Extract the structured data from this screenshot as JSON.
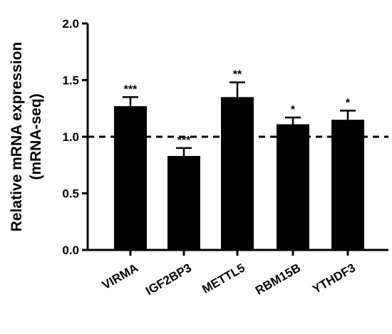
{
  "chart_data": {
    "type": "bar",
    "categories": [
      "VIRMA",
      "IGF2BP3",
      "METTL5",
      "RBM15B",
      "YTHDF3"
    ],
    "values": [
      1.27,
      0.83,
      1.35,
      1.11,
      1.15
    ],
    "error_upper": [
      1.35,
      0.9,
      1.48,
      1.17,
      1.23
    ],
    "significance": [
      "***",
      "***",
      "**",
      "*",
      "*"
    ],
    "ylabel_line1": "Relative mRNA expression",
    "ylabel_line2": "(mRNA-seq)",
    "ylim": [
      0,
      2.0
    ],
    "yticks": [
      "0.0",
      "0.5",
      "1.0",
      "1.5",
      "2.0"
    ],
    "reference_line": 1.0,
    "bar_color": "#000000"
  }
}
